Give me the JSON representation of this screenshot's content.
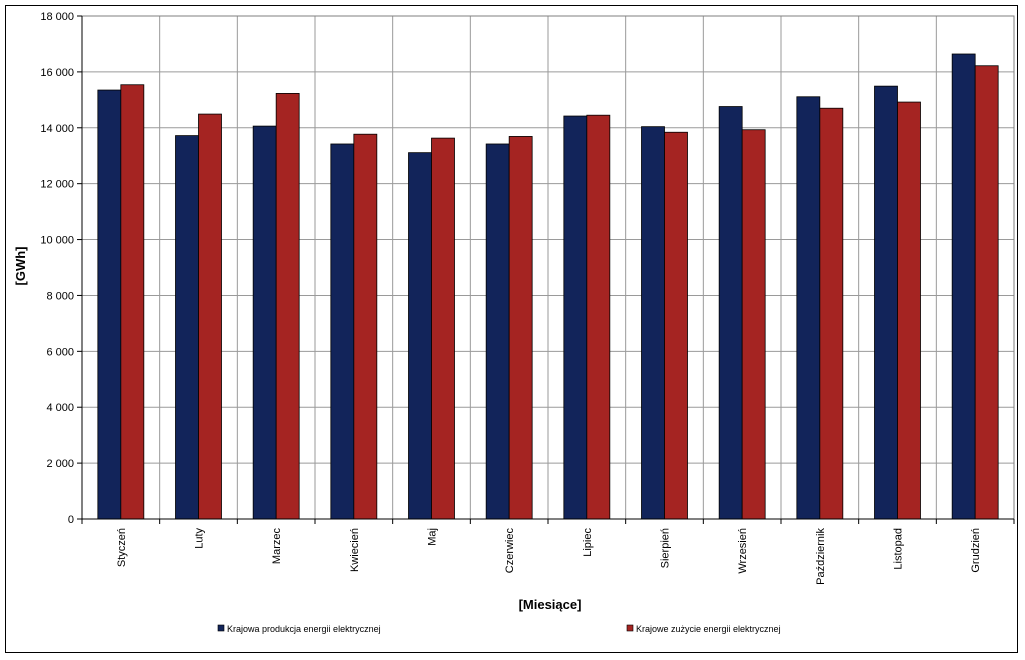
{
  "chart_data": {
    "type": "bar",
    "categories": [
      "Styczeń",
      "Luty",
      "Marzec",
      "Kwiecień",
      "Maj",
      "Czerwiec",
      "Lipiec",
      "Sierpień",
      "Wrzesień",
      "Październik",
      "Listopad",
      "Grudzień"
    ],
    "series": [
      {
        "name": "Krajowa produkcja energii elektrycznej",
        "color": "#12245a",
        "values": [
          15350,
          13720,
          14060,
          13420,
          13110,
          13420,
          14420,
          14040,
          14760,
          15110,
          15490,
          16640
        ]
      },
      {
        "name": "Krajowe zużycie energii elektrycznej",
        "color": "#a52422",
        "values": [
          15540,
          14490,
          15230,
          13770,
          13630,
          13690,
          14450,
          13840,
          13930,
          14700,
          14920,
          16220
        ]
      }
    ],
    "xlabel": "[Miesiące]",
    "ylabel": "[GWh]",
    "ylim": [
      0,
      18000
    ],
    "yticks": [
      0,
      2000,
      4000,
      6000,
      8000,
      10000,
      12000,
      14000,
      16000,
      18000
    ],
    "ytick_labels": [
      "0",
      "2 000",
      "4 000",
      "6 000",
      "8 000",
      "10 000",
      "12 000",
      "14 000",
      "16 000",
      "18 000"
    ],
    "grid": true,
    "legend_position": "bottom"
  }
}
